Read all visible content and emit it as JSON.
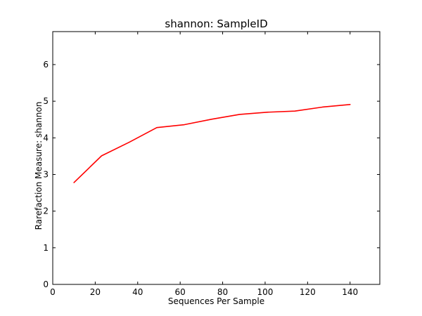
{
  "chart_data": {
    "type": "line",
    "title": "shannon: SampleID",
    "xlabel": "Sequences Per Sample",
    "ylabel": "Rarefaction Measure: shannon",
    "xlim": [
      0,
      154
    ],
    "ylim": [
      0,
      6.9
    ],
    "xticks": [
      0,
      20,
      40,
      60,
      80,
      100,
      120,
      140
    ],
    "yticks": [
      0,
      1,
      2,
      3,
      4,
      5,
      6
    ],
    "grid": false,
    "series": [
      {
        "color": "#ff0000",
        "x": [
          10,
          23,
          36,
          49,
          62,
          75,
          88,
          101,
          114,
          127,
          140
        ],
        "y": [
          2.78,
          3.51,
          3.88,
          4.28,
          4.36,
          4.51,
          4.64,
          4.7,
          4.73,
          4.84,
          4.91
        ]
      }
    ]
  }
}
